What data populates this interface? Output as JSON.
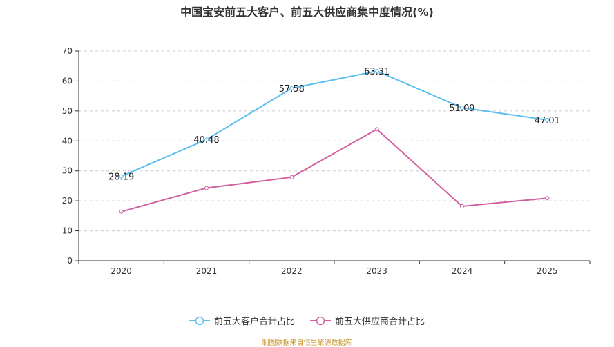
{
  "chart_data": {
    "type": "line",
    "title": "中国宝安前五大客户、前五大供应商集中度情况(%)",
    "categories": [
      "2020",
      "2021",
      "2022",
      "2023",
      "2024",
      "2025"
    ],
    "ylim": [
      0,
      70
    ],
    "yticks": [
      0,
      10,
      20,
      30,
      40,
      50,
      60,
      70
    ],
    "grid": true,
    "legend_position": "bottom",
    "series": [
      {
        "name": "前五大客户合计占比",
        "values": [
          28.19,
          40.48,
          57.58,
          63.31,
          51.09,
          47.01
        ],
        "color": "#5bbfef",
        "labels": [
          "28.19",
          "40.48",
          "57.58",
          "63.31",
          "51.09",
          "47.01"
        ]
      },
      {
        "name": "前五大供应商合计占比",
        "values": [
          16.4,
          24.3,
          27.9,
          43.9,
          18.2,
          20.9
        ],
        "color": "#d0609f"
      }
    ]
  },
  "source_note": "制图数据来自恒生聚源数据库"
}
